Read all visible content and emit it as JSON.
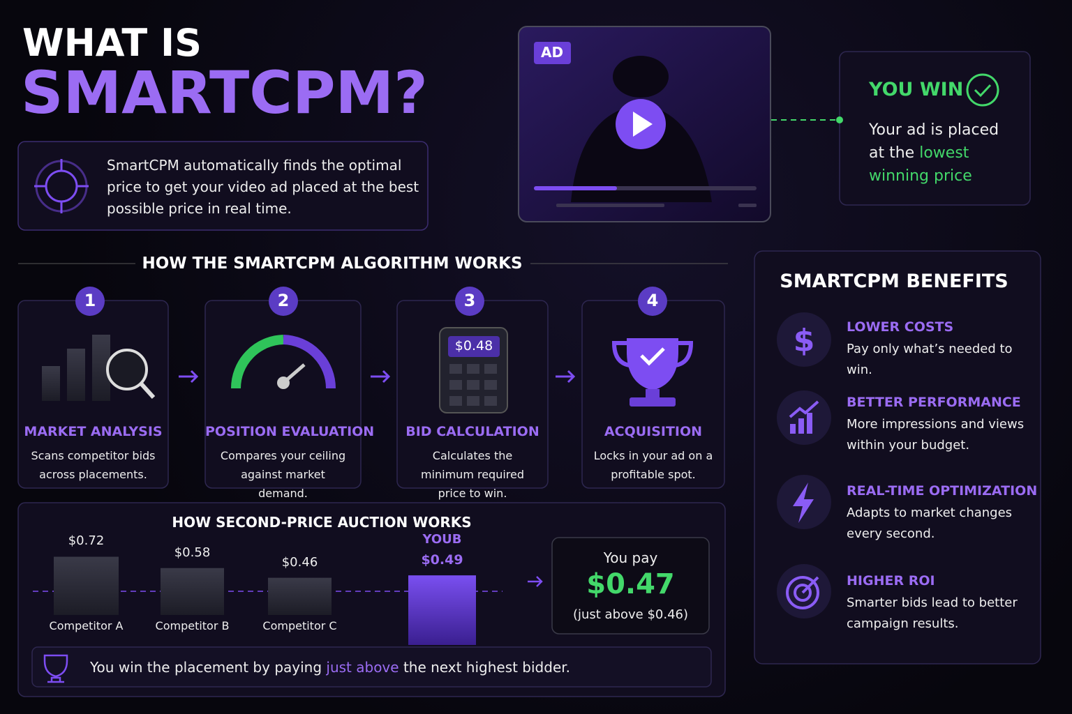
{
  "header": {
    "title_line1": "WHAT IS",
    "title_line2": "SMARTCPM?",
    "intro": "SmartCPM automatically finds the optimal price to get your video ad placed at the best possible price in real time."
  },
  "ad": {
    "badge": "AD"
  },
  "win": {
    "title": "YOU WIN",
    "text": "Your ad is placed at the",
    "highlight": "lowest winning price"
  },
  "steps": {
    "heading": "HOW THE SMARTCPM ALGORITHM WORKS",
    "calculator_display": "$0.48",
    "items": [
      {
        "number": 1,
        "title": "MARKET ANALYSIS",
        "text": "Scans competitor bids across placements."
      },
      {
        "number": 2,
        "title": "POSITION EVALUATION",
        "text": "Compares your ceiling against market demand."
      },
      {
        "number": 3,
        "title": "BID CALCULATION",
        "text": "Calculates the minimum required price to win."
      },
      {
        "number": 4,
        "title": "ACQUISITION",
        "text": "Locks in your ad on a profitable spot."
      }
    ]
  },
  "auction": {
    "heading": "HOW SECOND-PRICE AUCTION WORKS",
    "bidders": [
      {
        "name": "Competitor A",
        "value": 0.72,
        "label": "$0.72"
      },
      {
        "name": "Competitor B",
        "value": 0.58,
        "label": "$0.58"
      },
      {
        "name": "Competitor C",
        "value": 0.46,
        "label": "$0.46"
      }
    ],
    "you": {
      "name": "YOUB",
      "value": 0.49,
      "label": "$0.49"
    },
    "pay_title": "You pay",
    "pay": {
      "value": 0.47,
      "label": "$0.47"
    },
    "pay_note": "(just above $0.46)",
    "footer_before": "You win the placement by paying",
    "footer_highlight": "just above",
    "footer_after": "the next highest bidder."
  },
  "benefits": {
    "title": "SMARTCPM BENEFITS",
    "items": [
      {
        "title": "LOWER COSTS",
        "text": "Pay only what’s needed to win."
      },
      {
        "title": "BETTER PERFORMANCE",
        "text": "More impressions and views within your budget."
      },
      {
        "title": "REAL-TIME OPTIMIZATION",
        "text": "Adapts to market changes every second."
      },
      {
        "title": "HIGHER ROI",
        "text": "Smarter bids lead to better campaign results."
      }
    ]
  }
}
